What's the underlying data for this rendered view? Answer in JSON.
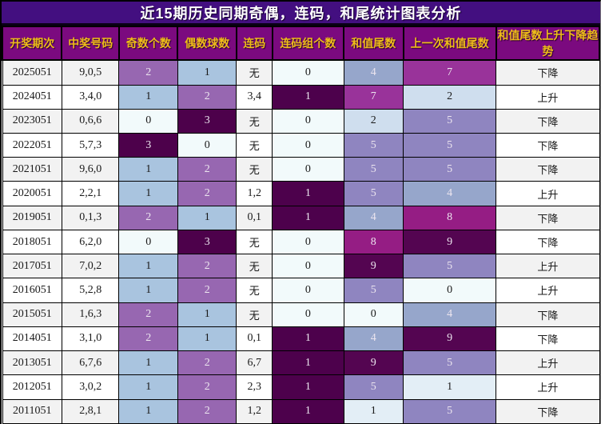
{
  "chart_data": {
    "type": "table",
    "title": "近15期历史同期奇偶，连码，和尾统计图表分析",
    "columns": [
      "开奖期次",
      "中奖号码",
      "奇数个数",
      "偶数球数",
      "连码",
      "连码组个数",
      "和值尾数",
      "上一次和值尾数",
      "和值尾数上升下降趋势"
    ],
    "none_label": "无",
    "trend_up_label": "上升",
    "trend_down_label": "下降",
    "rows": [
      {
        "period": "2025051",
        "numbers": "9,0,5",
        "odd": 2,
        "even": 1,
        "consecutive": "无",
        "groups": 0,
        "tail": 4,
        "prev_tail": 7,
        "trend": "下降"
      },
      {
        "period": "2024051",
        "numbers": "3,4,0",
        "odd": 1,
        "even": 2,
        "consecutive": "3,4",
        "groups": 1,
        "tail": 7,
        "prev_tail": 2,
        "trend": "上升"
      },
      {
        "period": "2023051",
        "numbers": "0,6,6",
        "odd": 0,
        "even": 3,
        "consecutive": "无",
        "groups": 0,
        "tail": 2,
        "prev_tail": 5,
        "trend": "下降"
      },
      {
        "period": "2022051",
        "numbers": "5,7,3",
        "odd": 3,
        "even": 0,
        "consecutive": "无",
        "groups": 0,
        "tail": 5,
        "prev_tail": 5,
        "trend": "下降"
      },
      {
        "period": "2021051",
        "numbers": "9,6,0",
        "odd": 1,
        "even": 2,
        "consecutive": "无",
        "groups": 0,
        "tail": 5,
        "prev_tail": 5,
        "trend": "下降"
      },
      {
        "period": "2020051",
        "numbers": "2,2,1",
        "odd": 1,
        "even": 2,
        "consecutive": "1,2",
        "groups": 1,
        "tail": 5,
        "prev_tail": 4,
        "trend": "上升"
      },
      {
        "period": "2019051",
        "numbers": "0,1,3",
        "odd": 2,
        "even": 1,
        "consecutive": "0,1",
        "groups": 1,
        "tail": 4,
        "prev_tail": 8,
        "trend": "下降"
      },
      {
        "period": "2018051",
        "numbers": "6,2,0",
        "odd": 0,
        "even": 3,
        "consecutive": "无",
        "groups": 0,
        "tail": 8,
        "prev_tail": 9,
        "trend": "下降"
      },
      {
        "period": "2017051",
        "numbers": "7,0,2",
        "odd": 1,
        "even": 2,
        "consecutive": "无",
        "groups": 0,
        "tail": 9,
        "prev_tail": 5,
        "trend": "上升"
      },
      {
        "period": "2016051",
        "numbers": "5,2,8",
        "odd": 1,
        "even": 2,
        "consecutive": "无",
        "groups": 0,
        "tail": 5,
        "prev_tail": 0,
        "trend": "上升"
      },
      {
        "period": "2015051",
        "numbers": "1,6,3",
        "odd": 2,
        "even": 1,
        "consecutive": "无",
        "groups": 0,
        "tail": 0,
        "prev_tail": 4,
        "trend": "下降"
      },
      {
        "period": "2014051",
        "numbers": "3,1,0",
        "odd": 2,
        "even": 1,
        "consecutive": "0,1",
        "groups": 1,
        "tail": 4,
        "prev_tail": 9,
        "trend": "下降"
      },
      {
        "period": "2013051",
        "numbers": "6,7,6",
        "odd": 1,
        "even": 2,
        "consecutive": "6,7",
        "groups": 1,
        "tail": 9,
        "prev_tail": 5,
        "trend": "上升"
      },
      {
        "period": "2012051",
        "numbers": "3,0,2",
        "odd": 1,
        "even": 2,
        "consecutive": "2,3",
        "groups": 1,
        "tail": 5,
        "prev_tail": 1,
        "trend": "上升"
      },
      {
        "period": "2011051",
        "numbers": "2,8,1",
        "odd": 1,
        "even": 2,
        "consecutive": "1,2",
        "groups": 1,
        "tail": 1,
        "prev_tail": 5,
        "trend": "下降"
      }
    ]
  },
  "colors": {
    "title_bg": "#430f80",
    "header_bg": "#7b0a7f",
    "header_text": "#eebc1a",
    "row_bg": "#ffffff",
    "row_alt_bg": "#f2f2f2",
    "dark_text": "#1a1a1a",
    "light_text": "#ece5ef",
    "count_scale": {
      "0": "#f2fafb",
      "1": "#a9c4df",
      "2": "#9767b1",
      "3": "#4d014b"
    },
    "group_scale": {
      "0": "#f2fafb",
      "1": "#4d014c"
    },
    "tail_scale": {
      "0": "#f2fafb",
      "1": "#e3eef6",
      "2": "#cfdeee",
      "3": "#b1c6e0",
      "4": "#96a6cb",
      "5": "#8f85c0",
      "6": "#8d68b2",
      "7": "#99339a",
      "8": "#951d84",
      "9": "#540551"
    }
  }
}
